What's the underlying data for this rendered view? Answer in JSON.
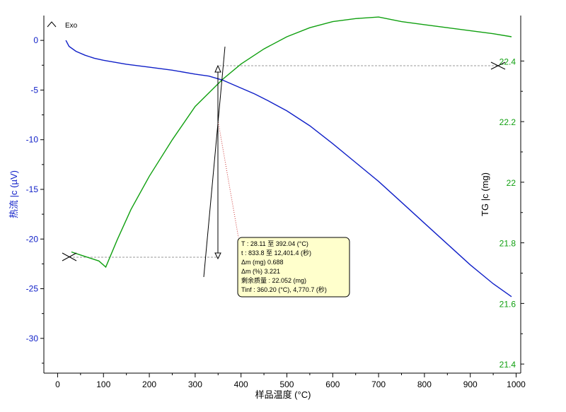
{
  "chart_data": {
    "type": "line",
    "exo_label": "Exo",
    "xlabel": "样品温度 (°C)",
    "ylabel_left": "热流 |c (µV)",
    "ylabel_right": "TG |c (mg)",
    "xlim": [
      -30,
      1010
    ],
    "ylim_left": [
      -33.5,
      2.5
    ],
    "ylim_right": [
      21.37,
      22.55
    ],
    "x_ticks": [
      "0",
      "100",
      "200",
      "300",
      "400",
      "500",
      "600",
      "700",
      "800",
      "900",
      "1000"
    ],
    "y_left_ticks": [
      "0",
      "-5",
      "-10",
      "-15",
      "-20",
      "-25",
      "-30"
    ],
    "y_right_ticks": [
      "22.4",
      "22.2",
      "22",
      "21.8",
      "21.6",
      "21.4"
    ],
    "colors": {
      "heat_flow": "#1020c8",
      "tg": "#10a010",
      "annotation": "#000000",
      "tooltip_bg": "#ffffcc",
      "guide": "#999999",
      "dotted_guide": "#cc3333"
    },
    "series": [
      {
        "axis": "left",
        "x": [
          18,
          25,
          40,
          60,
          80,
          100,
          150,
          200,
          250,
          300,
          330,
          360,
          380,
          400,
          430,
          460,
          500,
          550,
          600,
          650,
          700,
          750,
          800,
          850,
          900,
          950,
          990
        ],
        "y": [
          0,
          -0.6,
          -1.1,
          -1.5,
          -1.8,
          -2.0,
          -2.4,
          -2.7,
          -3.0,
          -3.4,
          -3.6,
          -4.0,
          -4.4,
          -4.8,
          -5.4,
          -6.1,
          -7.1,
          -8.6,
          -10.4,
          -12.3,
          -14.2,
          -16.3,
          -18.4,
          -20.5,
          -22.6,
          -24.5,
          -25.8
        ]
      },
      {
        "axis": "right",
        "x": [
          30,
          50,
          70,
          90,
          105,
          130,
          160,
          200,
          250,
          300,
          360,
          400,
          450,
          500,
          550,
          600,
          650,
          700,
          750,
          800,
          850,
          900,
          950,
          990
        ],
        "y": [
          21.77,
          21.76,
          21.75,
          21.74,
          21.72,
          21.81,
          21.91,
          22.02,
          22.14,
          22.25,
          22.34,
          22.39,
          22.44,
          22.48,
          22.51,
          22.53,
          22.54,
          22.545,
          22.53,
          22.52,
          22.51,
          22.5,
          22.49,
          22.48
        ]
      }
    ],
    "tooltip": {
      "lines": [
        "T : 28.11 至 392.04 (°C)",
        "t : 833.8 至 12,401.4 (秒)",
        "Δm (mg) 0.688",
        "Δm (%) 3.221",
        "剩余质量 : 22.052 (mg)",
        "Tinf : 360.20 (°C), 4,770.7 (秒)"
      ]
    }
  }
}
